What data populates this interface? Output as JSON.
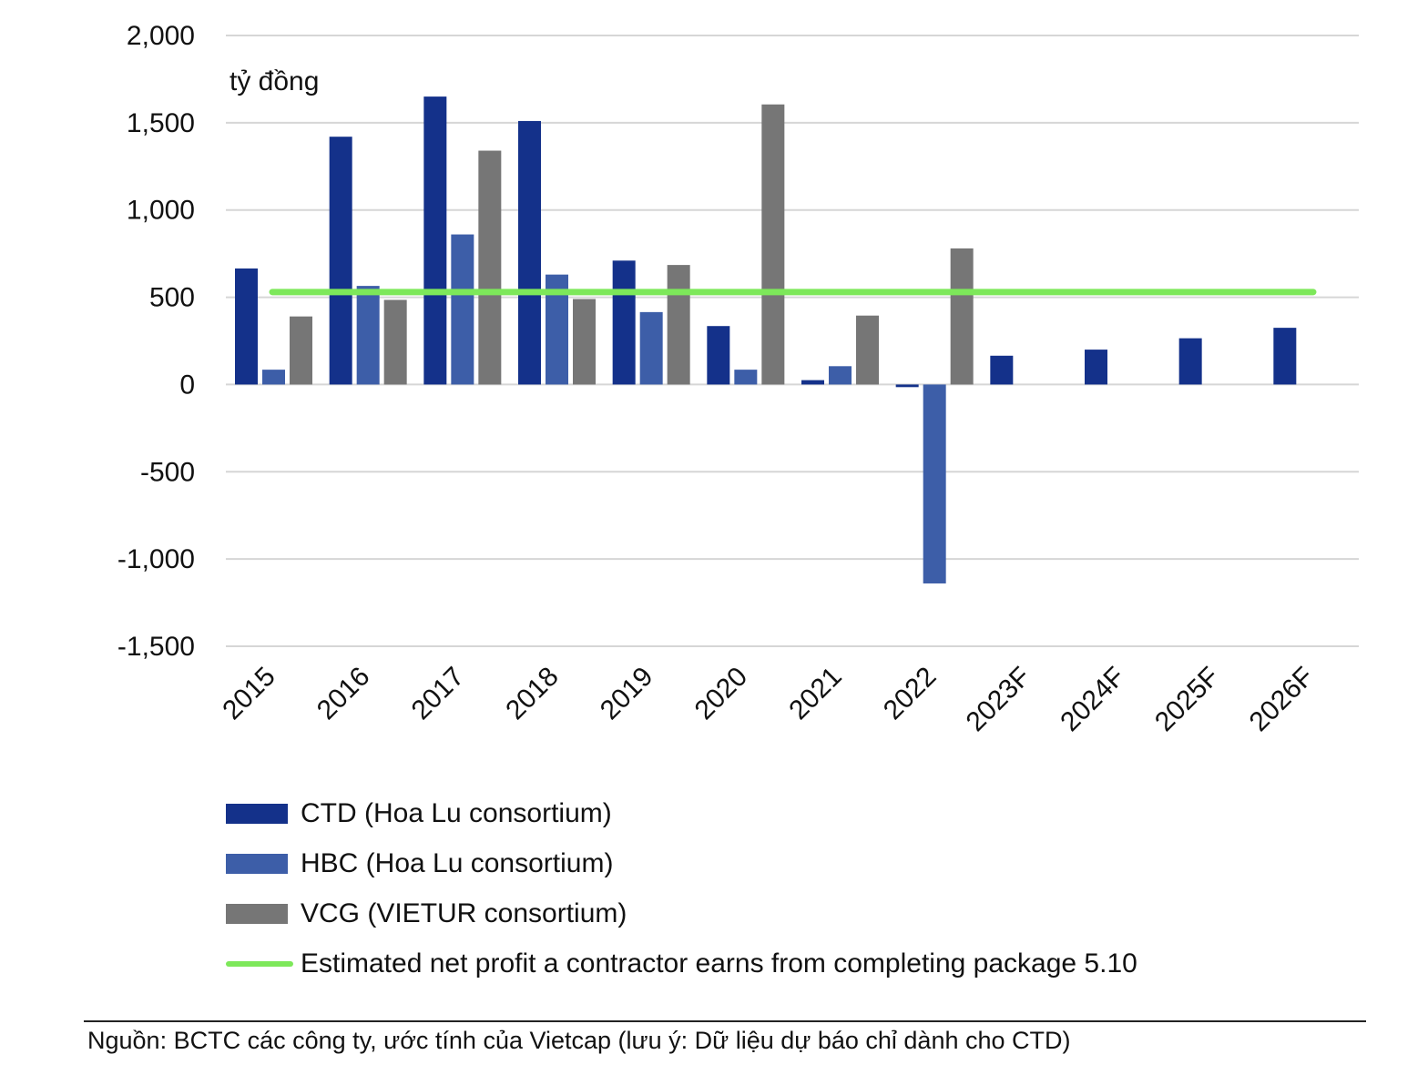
{
  "chart_data": {
    "type": "bar",
    "unit_label": "tỷ đồng",
    "categories": [
      "2015",
      "2016",
      "2017",
      "2018",
      "2019",
      "2020",
      "2021",
      "2022",
      "2023F",
      "2024F",
      "2025F",
      "2026F"
    ],
    "ylim": [
      -1500,
      2000
    ],
    "yticks": [
      2000,
      1500,
      1000,
      500,
      0,
      -500,
      -1000,
      -1500
    ],
    "ytick_labels": [
      "2,000",
      "1,500",
      "1,000",
      "500",
      "0",
      "-500",
      "-1,000",
      "-1,500"
    ],
    "series": [
      {
        "name": "CTD (Hoa Lu consortium)",
        "color": "#14318a",
        "values": [
          665,
          1420,
          1650,
          1510,
          710,
          335,
          25,
          -15,
          165,
          200,
          265,
          325
        ]
      },
      {
        "name": "HBC (Hoa Lu consortium)",
        "color": "#3d5ea8",
        "values": [
          85,
          565,
          860,
          630,
          415,
          85,
          105,
          -1140,
          null,
          null,
          null,
          null
        ]
      },
      {
        "name": "VCG (VIETUR consortium)",
        "color": "#767676",
        "values": [
          390,
          485,
          1340,
          490,
          685,
          1605,
          395,
          780,
          null,
          null,
          null,
          null
        ]
      }
    ],
    "reference_line": {
      "name": "Estimated net profit a contractor earns from completing package 5.10",
      "color": "#7de85a",
      "value": 530
    },
    "grid": true,
    "legend_position": "bottom-left"
  },
  "legend": {
    "items": [
      {
        "label": "CTD (Hoa Lu consortium)",
        "color": "#14318a",
        "kind": "bar"
      },
      {
        "label": "HBC (Hoa Lu consortium)",
        "color": "#3d5ea8",
        "kind": "bar"
      },
      {
        "label": "VCG (VIETUR consortium)",
        "color": "#767676",
        "kind": "bar"
      },
      {
        "label": "Estimated net profit a contractor earns from completing package 5.10",
        "color": "#7de85a",
        "kind": "line"
      }
    ]
  },
  "source_note": "Nguồn: BCTC các công ty, ước tính của Vietcap (lưu ý: Dữ liệu dự báo chỉ dành cho CTD)"
}
